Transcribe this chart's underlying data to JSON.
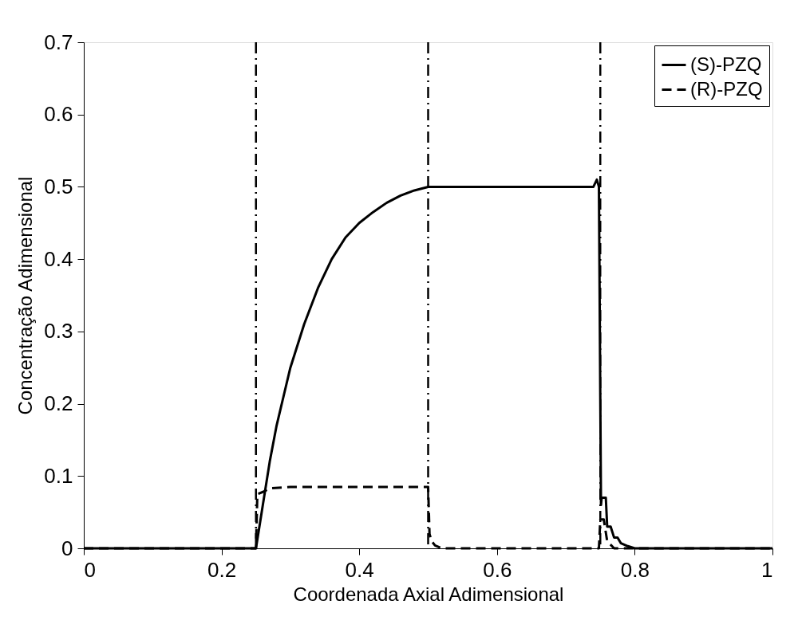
{
  "chart_data": {
    "type": "line",
    "xlabel": "Coordenada Axial Adimensional",
    "ylabel": "Concentração Adimensional",
    "xlim": [
      0,
      1
    ],
    "ylim": [
      0,
      0.7
    ],
    "xticks": [
      0,
      0.2,
      0.4,
      0.6,
      0.8,
      1
    ],
    "yticks": [
      0,
      0.1,
      0.2,
      0.3,
      0.4,
      0.5,
      0.6,
      0.7
    ],
    "legend": "top right",
    "grid": false,
    "marker": "none",
    "series": [
      {
        "name": "(S)-PZQ",
        "color": "#000000",
        "line_style": "solid",
        "x": [
          0,
          0.25,
          0.26,
          0.27,
          0.28,
          0.29,
          0.3,
          0.32,
          0.34,
          0.36,
          0.38,
          0.4,
          0.42,
          0.44,
          0.46,
          0.48,
          0.5,
          0.74,
          0.745,
          0.748,
          0.751,
          0.752,
          0.758,
          0.76,
          0.765,
          0.77,
          0.775,
          0.78,
          0.79,
          0.8,
          1
        ],
        "values": [
          0,
          0,
          0.06,
          0.12,
          0.17,
          0.21,
          0.25,
          0.31,
          0.36,
          0.4,
          0.43,
          0.45,
          0.465,
          0.478,
          0.488,
          0.495,
          0.5,
          0.5,
          0.51,
          0.5,
          0.06,
          0.07,
          0.07,
          0.03,
          0.03,
          0.015,
          0.015,
          0.007,
          0.003,
          0,
          0
        ]
      },
      {
        "name": "(R)-PZQ",
        "color": "#000000",
        "line_style": "dashed",
        "x": [
          0,
          0.25,
          0.252,
          0.26,
          0.27,
          0.3,
          0.5,
          0.502,
          0.505,
          0.51,
          0.52,
          0.6,
          0.748,
          0.75,
          0.755,
          0.76,
          0.77,
          1
        ],
        "values": [
          0,
          0,
          0.075,
          0.078,
          0.083,
          0.085,
          0.085,
          0.02,
          0.01,
          0.004,
          0,
          0,
          0,
          0.04,
          0.04,
          0.01,
          0,
          0
        ]
      }
    ],
    "ref_lines": [
      {
        "axis": "x",
        "value": 0.25,
        "color": "#000000",
        "line_style": "dashdot"
      },
      {
        "axis": "x",
        "value": 0.5,
        "color": "#000000",
        "line_style": "dashdot"
      },
      {
        "axis": "x",
        "value": 0.75,
        "color": "#000000",
        "line_style": "dashdot"
      }
    ]
  }
}
